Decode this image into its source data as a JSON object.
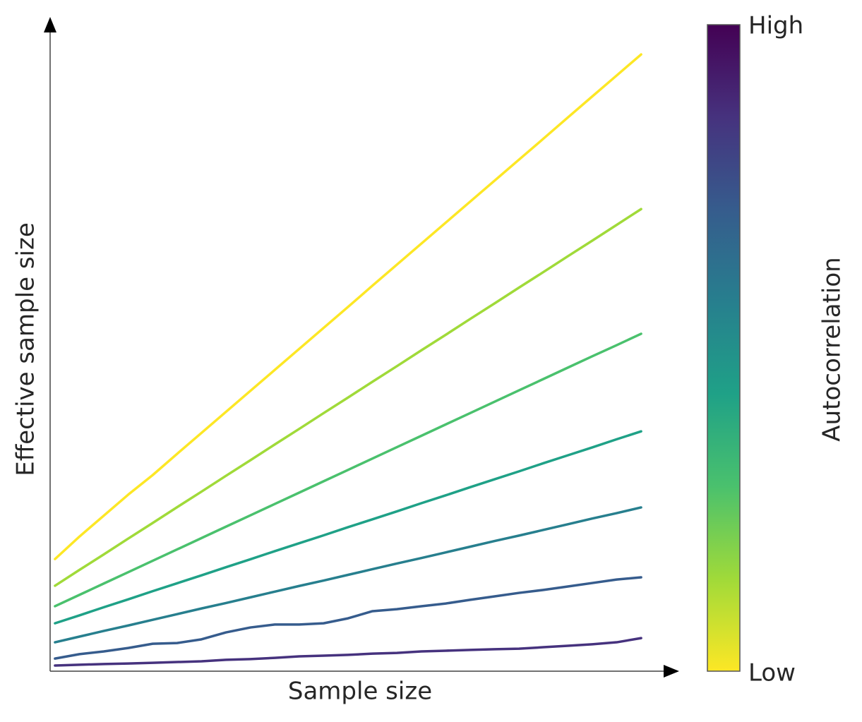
{
  "chart_data": {
    "type": "line",
    "x_label": "Sample size",
    "y_label": "Effective sample size",
    "x": [
      1,
      2,
      3,
      4,
      5,
      6,
      7,
      8,
      9,
      10,
      11,
      12,
      13,
      14,
      15,
      16,
      17,
      18,
      19,
      20,
      21,
      22,
      23,
      24,
      25
    ],
    "xlim": [
      0.8,
      26.5
    ],
    "ylim": [
      0,
      26.46
    ],
    "series": [
      {
        "color": "#fde725",
        "values": [
          4.54,
          5.45,
          6.3,
          7.15,
          7.94,
          8.8,
          9.65,
          10.5,
          11.35,
          12.2,
          13.05,
          13.9,
          14.75,
          15.61,
          16.46,
          17.31,
          18.16,
          19.01,
          19.86,
          20.71,
          21.56,
          22.42,
          23.27,
          24.12,
          24.97
        ]
      },
      {
        "color": "#a0da39",
        "values": [
          3.46,
          4.1,
          4.73,
          5.37,
          6.0,
          6.64,
          7.27,
          7.91,
          8.54,
          9.18,
          9.81,
          10.45,
          11.08,
          11.72,
          12.35,
          12.99,
          13.62,
          14.26,
          14.89,
          15.53,
          16.16,
          16.8,
          17.43,
          18.07,
          18.71
        ]
      },
      {
        "color": "#4ac16d",
        "values": [
          2.63,
          3.09,
          3.55,
          4.01,
          4.47,
          4.93,
          5.39,
          5.85,
          6.31,
          6.77,
          7.23,
          7.69,
          8.15,
          8.61,
          9.07,
          9.53,
          9.99,
          10.45,
          10.91,
          11.37,
          11.83,
          12.29,
          12.75,
          13.2,
          13.66
        ]
      },
      {
        "color": "#1fa187",
        "values": [
          1.94,
          2.26,
          2.59,
          2.91,
          3.24,
          3.56,
          3.88,
          4.21,
          4.53,
          4.86,
          5.18,
          5.5,
          5.83,
          6.15,
          6.47,
          6.8,
          7.12,
          7.45,
          7.77,
          8.09,
          8.42,
          8.74,
          9.06,
          9.39,
          9.71
        ]
      },
      {
        "color": "#277f8e",
        "values": [
          1.17,
          1.4,
          1.63,
          1.85,
          2.08,
          2.31,
          2.54,
          2.76,
          2.99,
          3.22,
          3.45,
          3.67,
          3.9,
          4.13,
          4.36,
          4.58,
          4.81,
          5.04,
          5.27,
          5.49,
          5.72,
          5.95,
          6.18,
          6.4,
          6.63
        ]
      },
      {
        "color": "#365c8d",
        "values": [
          0.51,
          0.69,
          0.8,
          0.94,
          1.11,
          1.14,
          1.29,
          1.57,
          1.77,
          1.89,
          1.89,
          1.94,
          2.14,
          2.43,
          2.51,
          2.63,
          2.74,
          2.89,
          3.03,
          3.17,
          3.29,
          3.43,
          3.57,
          3.71,
          3.8
        ]
      },
      {
        "color": "#46327e",
        "values": [
          0.23,
          0.26,
          0.29,
          0.31,
          0.34,
          0.37,
          0.4,
          0.46,
          0.49,
          0.54,
          0.6,
          0.63,
          0.66,
          0.71,
          0.74,
          0.8,
          0.83,
          0.86,
          0.89,
          0.91,
          0.97,
          1.03,
          1.09,
          1.17,
          1.34
        ]
      }
    ],
    "colorbar": {
      "label": "Autocorrelation",
      "high_label": "High",
      "low_label": "Low",
      "colors": [
        "#fde725",
        "#a0da39",
        "#4ac16d",
        "#1fa187",
        "#277f8e",
        "#365c8d",
        "#46327e",
        "#440154"
      ]
    }
  }
}
